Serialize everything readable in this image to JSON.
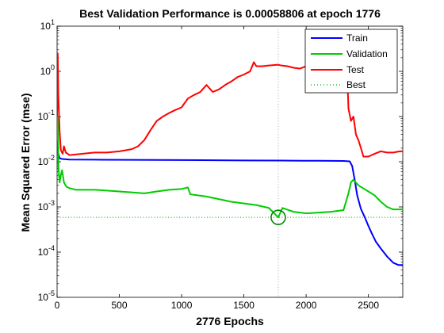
{
  "chart_data": {
    "type": "line",
    "title": "Best Validation Performance is 0.00058806 at epoch 1776",
    "xlabel": "2776 Epochs",
    "ylabel": "Mean Squared Error  (mse)",
    "xlim": [
      0,
      2776
    ],
    "ylim": [
      1e-05,
      10
    ],
    "yscale": "log",
    "xticks": [
      0,
      500,
      1000,
      1500,
      2000,
      2500
    ],
    "xtick_labels": [
      "0",
      "500",
      "1000",
      "1500",
      "2000",
      "2500"
    ],
    "yticks": [
      1e-05,
      0.0001,
      0.001,
      0.01,
      0.1,
      1,
      10
    ],
    "ytick_labels": [
      {
        "base": "10",
        "exp": "-5"
      },
      {
        "base": "10",
        "exp": "-4"
      },
      {
        "base": "10",
        "exp": "-3"
      },
      {
        "base": "10",
        "exp": "-2"
      },
      {
        "base": "10",
        "exp": "-1"
      },
      {
        "base": "10",
        "exp": "0"
      },
      {
        "base": "10",
        "exp": "1"
      }
    ],
    "grid": false,
    "legend_position": "top-right",
    "series": [
      {
        "name": "Train",
        "color": "#0000ff",
        "style": "solid",
        "points": [
          [
            0,
            0.1
          ],
          [
            5,
            0.03
          ],
          [
            10,
            0.015
          ],
          [
            20,
            0.012
          ],
          [
            40,
            0.0115
          ],
          [
            100,
            0.0112
          ],
          [
            300,
            0.0111
          ],
          [
            600,
            0.011
          ],
          [
            1000,
            0.0109
          ],
          [
            1500,
            0.0107
          ],
          [
            1800,
            0.0106
          ],
          [
            2100,
            0.0105
          ],
          [
            2300,
            0.0104
          ],
          [
            2350,
            0.0102
          ],
          [
            2370,
            0.008
          ],
          [
            2390,
            0.004
          ],
          [
            2410,
            0.0018
          ],
          [
            2440,
            0.0009
          ],
          [
            2470,
            0.0006
          ],
          [
            2500,
            0.00038
          ],
          [
            2530,
            0.00025
          ],
          [
            2560,
            0.00017
          ],
          [
            2600,
            0.00012
          ],
          [
            2650,
            8e-05
          ],
          [
            2700,
            5.8e-05
          ],
          [
            2740,
            5.2e-05
          ],
          [
            2776,
            5.2e-05
          ]
        ]
      },
      {
        "name": "Validation",
        "color": "#00cc00",
        "style": "solid",
        "points": [
          [
            0,
            0.03
          ],
          [
            5,
            0.1
          ],
          [
            12,
            0.007
          ],
          [
            20,
            0.0035
          ],
          [
            30,
            0.005
          ],
          [
            40,
            0.0065
          ],
          [
            55,
            0.0035
          ],
          [
            75,
            0.0028
          ],
          [
            100,
            0.0026
          ],
          [
            150,
            0.0024
          ],
          [
            200,
            0.0024
          ],
          [
            300,
            0.0024
          ],
          [
            400,
            0.0023
          ],
          [
            500,
            0.0022
          ],
          [
            600,
            0.0021
          ],
          [
            700,
            0.002
          ],
          [
            800,
            0.0022
          ],
          [
            900,
            0.0024
          ],
          [
            1000,
            0.0025
          ],
          [
            1050,
            0.0027
          ],
          [
            1070,
            0.0019
          ],
          [
            1200,
            0.0017
          ],
          [
            1400,
            0.0013
          ],
          [
            1600,
            0.0011
          ],
          [
            1700,
            0.00095
          ],
          [
            1776,
            0.00059
          ],
          [
            1810,
            0.00095
          ],
          [
            1900,
            0.00078
          ],
          [
            2000,
            0.00072
          ],
          [
            2100,
            0.00075
          ],
          [
            2200,
            0.00078
          ],
          [
            2300,
            0.00085
          ],
          [
            2340,
            0.002
          ],
          [
            2360,
            0.0035
          ],
          [
            2380,
            0.004
          ],
          [
            2420,
            0.003
          ],
          [
            2500,
            0.0022
          ],
          [
            2550,
            0.0018
          ],
          [
            2600,
            0.0013
          ],
          [
            2650,
            0.001
          ],
          [
            2700,
            0.00088
          ],
          [
            2776,
            0.00088
          ]
        ]
      },
      {
        "name": "Test",
        "color": "#ff0000",
        "style": "solid",
        "points": [
          [
            0,
            0.1
          ],
          [
            5,
            2.5
          ],
          [
            10,
            0.3
          ],
          [
            20,
            0.05
          ],
          [
            30,
            0.018
          ],
          [
            45,
            0.015
          ],
          [
            55,
            0.022
          ],
          [
            70,
            0.016
          ],
          [
            100,
            0.014
          ],
          [
            200,
            0.015
          ],
          [
            300,
            0.016
          ],
          [
            400,
            0.016
          ],
          [
            500,
            0.017
          ],
          [
            600,
            0.019
          ],
          [
            650,
            0.022
          ],
          [
            700,
            0.03
          ],
          [
            750,
            0.05
          ],
          [
            800,
            0.08
          ],
          [
            850,
            0.1
          ],
          [
            900,
            0.12
          ],
          [
            950,
            0.14
          ],
          [
            1000,
            0.16
          ],
          [
            1050,
            0.25
          ],
          [
            1100,
            0.3
          ],
          [
            1150,
            0.35
          ],
          [
            1200,
            0.5
          ],
          [
            1250,
            0.35
          ],
          [
            1300,
            0.4
          ],
          [
            1350,
            0.5
          ],
          [
            1400,
            0.6
          ],
          [
            1450,
            0.75
          ],
          [
            1500,
            0.85
          ],
          [
            1550,
            1.0
          ],
          [
            1580,
            1.6
          ],
          [
            1600,
            1.3
          ],
          [
            1650,
            1.3
          ],
          [
            1700,
            1.35
          ],
          [
            1776,
            1.4
          ],
          [
            1800,
            1.35
          ],
          [
            1850,
            1.3
          ],
          [
            1900,
            1.2
          ],
          [
            1950,
            1.15
          ],
          [
            2000,
            1.3
          ],
          [
            2100,
            1.25
          ],
          [
            2200,
            1.3
          ],
          [
            2300,
            1.2
          ],
          [
            2330,
            0.8
          ],
          [
            2340,
            0.15
          ],
          [
            2360,
            0.08
          ],
          [
            2380,
            0.1
          ],
          [
            2400,
            0.04
          ],
          [
            2420,
            0.03
          ],
          [
            2440,
            0.02
          ],
          [
            2460,
            0.013
          ],
          [
            2500,
            0.013
          ],
          [
            2550,
            0.015
          ],
          [
            2600,
            0.017
          ],
          [
            2650,
            0.016
          ],
          [
            2700,
            0.016
          ],
          [
            2750,
            0.017
          ],
          [
            2776,
            0.017
          ]
        ]
      },
      {
        "name": "Best",
        "color": "#00aa00",
        "style": "dotted"
      }
    ],
    "best": {
      "epoch": 1776,
      "value": 0.00058806,
      "marker": "circle",
      "marker_color": "#008800",
      "vline_color": "#aaaaaa"
    }
  }
}
